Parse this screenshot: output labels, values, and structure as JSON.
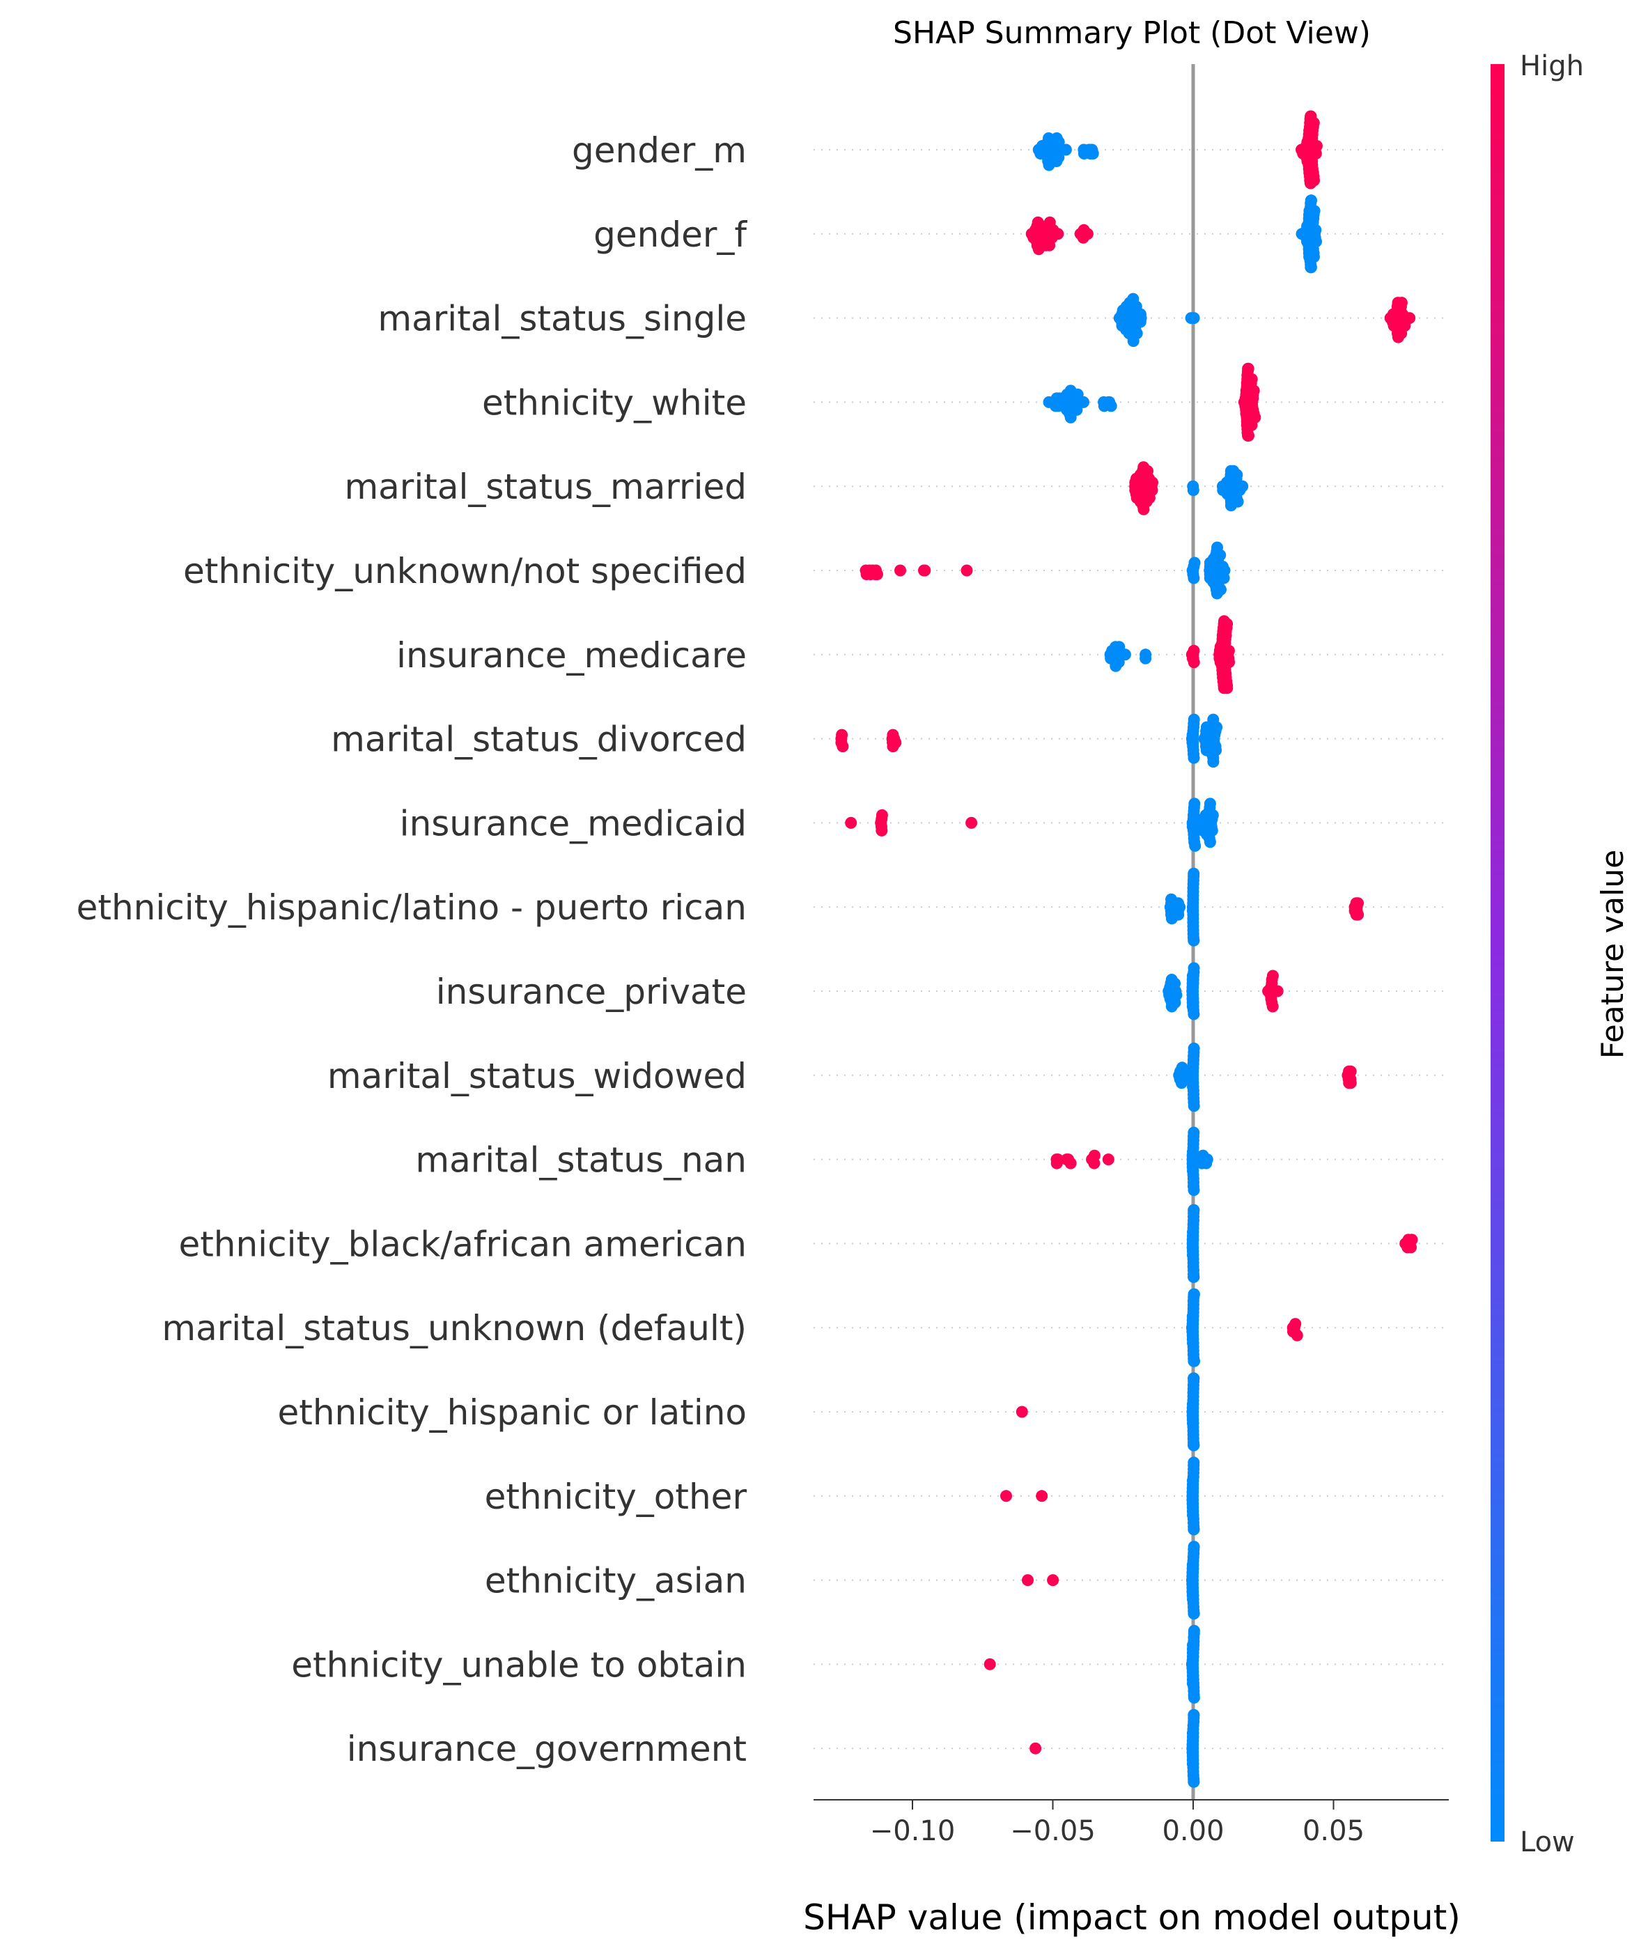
{
  "chart_data": {
    "type": "scatter",
    "variant": "shap-beeswarm",
    "title": "SHAP Summary Plot (Dot View)",
    "xlabel": "SHAP value (impact on model output)",
    "xlim": [
      -0.136,
      0.09
    ],
    "xticks": [
      -0.1,
      -0.05,
      0.0,
      0.05
    ],
    "xtick_labels": [
      "−0.10",
      "−0.05",
      "0.00",
      "0.05"
    ],
    "colorbar": {
      "title": "Feature value",
      "high_label": "High",
      "low_label": "Low",
      "high_color": "#ff0052",
      "low_color": "#008bfb"
    },
    "features": [
      {
        "name": "gender_m",
        "clusters": [
          {
            "center": -0.051,
            "spread": 0.0045,
            "count": 34,
            "value": "low"
          },
          {
            "center": -0.037,
            "spread": 0.003,
            "count": 6,
            "value": "low"
          },
          {
            "center": 0.0415,
            "spread": 0.002,
            "count": 48,
            "value": "high"
          }
        ]
      },
      {
        "name": "gender_f",
        "clusters": [
          {
            "center": -0.053,
            "spread": 0.004,
            "count": 34,
            "value": "high"
          },
          {
            "center": -0.038,
            "spread": 0.002,
            "count": 5,
            "value": "high"
          },
          {
            "center": 0.0415,
            "spread": 0.002,
            "count": 44,
            "value": "low"
          }
        ]
      },
      {
        "name": "marital_status_single",
        "clusters": [
          {
            "center": -0.022,
            "spread": 0.0035,
            "count": 46,
            "value": "low"
          },
          {
            "center": 0.0,
            "spread": 0.0005,
            "count": 2,
            "value": "low"
          },
          {
            "center": 0.073,
            "spread": 0.003,
            "count": 30,
            "value": "high"
          }
        ]
      },
      {
        "name": "ethnicity_white",
        "clusters": [
          {
            "center": -0.045,
            "spread": 0.005,
            "count": 28,
            "value": "low"
          },
          {
            "center": -0.031,
            "spread": 0.002,
            "count": 5,
            "value": "low"
          },
          {
            "center": 0.02,
            "spread": 0.0015,
            "count": 46,
            "value": "high"
          }
        ]
      },
      {
        "name": "marital_status_married",
        "clusters": [
          {
            "center": -0.018,
            "spread": 0.003,
            "count": 44,
            "value": "high"
          },
          {
            "center": 0.0,
            "spread": 0.0005,
            "count": 2,
            "value": "low"
          },
          {
            "center": 0.014,
            "spread": 0.0025,
            "count": 36,
            "value": "low"
          }
        ]
      },
      {
        "name": "ethnicity_unknown/not specified",
        "clusters": [
          {
            "center": -0.114,
            "spread": 0.003,
            "count": 8,
            "value": "high"
          },
          {
            "center": -0.104,
            "spread": 0.0005,
            "count": 1,
            "value": "high"
          },
          {
            "center": -0.096,
            "spread": 0.001,
            "count": 2,
            "value": "high"
          },
          {
            "center": -0.081,
            "spread": 0.0005,
            "count": 1,
            "value": "high"
          },
          {
            "center": 0.0,
            "spread": 0.0005,
            "count": 6,
            "value": "low"
          },
          {
            "center": 0.008,
            "spread": 0.0025,
            "count": 40,
            "value": "low"
          }
        ]
      },
      {
        "name": "insurance_medicare",
        "clusters": [
          {
            "center": -0.027,
            "spread": 0.003,
            "count": 16,
            "value": "low"
          },
          {
            "center": -0.017,
            "spread": 0.001,
            "count": 2,
            "value": "low"
          },
          {
            "center": 0.0,
            "spread": 0.0005,
            "count": 6,
            "value": "high"
          },
          {
            "center": 0.011,
            "spread": 0.0015,
            "count": 46,
            "value": "high"
          }
        ]
      },
      {
        "name": "marital_status_divorced",
        "clusters": [
          {
            "center": -0.125,
            "spread": 0.0008,
            "count": 4,
            "value": "high"
          },
          {
            "center": -0.107,
            "spread": 0.0008,
            "count": 6,
            "value": "high"
          },
          {
            "center": 0.0,
            "spread": 0.0005,
            "count": 14,
            "value": "low"
          },
          {
            "center": 0.006,
            "spread": 0.002,
            "count": 32,
            "value": "low"
          }
        ]
      },
      {
        "name": "insurance_medicaid",
        "clusters": [
          {
            "center": -0.122,
            "spread": 0.0003,
            "count": 1,
            "value": "high"
          },
          {
            "center": -0.111,
            "spread": 0.0008,
            "count": 5,
            "value": "high"
          },
          {
            "center": -0.079,
            "spread": 0.0003,
            "count": 1,
            "value": "high"
          },
          {
            "center": 0.0,
            "spread": 0.0005,
            "count": 14,
            "value": "low"
          },
          {
            "center": 0.005,
            "spread": 0.002,
            "count": 26,
            "value": "low"
          }
        ]
      },
      {
        "name": "ethnicity_hispanic/latino - puerto rican",
        "clusters": [
          {
            "center": -0.007,
            "spread": 0.002,
            "count": 14,
            "value": "low"
          },
          {
            "center": 0.0,
            "spread": 0.0003,
            "count": 22,
            "value": "low"
          },
          {
            "center": 0.058,
            "spread": 0.0008,
            "count": 8,
            "value": "high"
          }
        ]
      },
      {
        "name": "insurance_private",
        "clusters": [
          {
            "center": -0.008,
            "spread": 0.002,
            "count": 16,
            "value": "low"
          },
          {
            "center": 0.0,
            "spread": 0.0003,
            "count": 22,
            "value": "low"
          },
          {
            "center": 0.028,
            "spread": 0.0015,
            "count": 12,
            "value": "high"
          }
        ]
      },
      {
        "name": "marital_status_widowed",
        "clusters": [
          {
            "center": -0.004,
            "spread": 0.0015,
            "count": 8,
            "value": "low"
          },
          {
            "center": 0.0,
            "spread": 0.0003,
            "count": 22,
            "value": "low"
          },
          {
            "center": 0.056,
            "spread": 0.001,
            "count": 8,
            "value": "high"
          }
        ]
      },
      {
        "name": "marital_status_nan",
        "clusters": [
          {
            "center": -0.049,
            "spread": 0.001,
            "count": 3,
            "value": "high"
          },
          {
            "center": -0.044,
            "spread": 0.0008,
            "count": 3,
            "value": "high"
          },
          {
            "center": -0.036,
            "spread": 0.0008,
            "count": 3,
            "value": "high"
          },
          {
            "center": -0.03,
            "spread": 0.0003,
            "count": 1,
            "value": "high"
          },
          {
            "center": 0.0,
            "spread": 0.0003,
            "count": 22,
            "value": "low"
          },
          {
            "center": 0.004,
            "spread": 0.0012,
            "count": 6,
            "value": "low"
          }
        ]
      },
      {
        "name": "ethnicity_black/african american",
        "clusters": [
          {
            "center": 0.0,
            "spread": 0.0003,
            "count": 30,
            "value": "low"
          },
          {
            "center": 0.077,
            "spread": 0.0012,
            "count": 6,
            "value": "high"
          }
        ]
      },
      {
        "name": "marital_status_unknown (default)",
        "clusters": [
          {
            "center": 0.0,
            "spread": 0.0003,
            "count": 30,
            "value": "low"
          },
          {
            "center": 0.036,
            "spread": 0.001,
            "count": 6,
            "value": "high"
          }
        ]
      },
      {
        "name": "ethnicity_hispanic or latino",
        "clusters": [
          {
            "center": -0.061,
            "spread": 0.0003,
            "count": 1,
            "value": "high"
          },
          {
            "center": 0.0,
            "spread": 0.0003,
            "count": 30,
            "value": "low"
          }
        ]
      },
      {
        "name": "ethnicity_other",
        "clusters": [
          {
            "center": -0.067,
            "spread": 0.0003,
            "count": 1,
            "value": "high"
          },
          {
            "center": -0.054,
            "spread": 0.0003,
            "count": 1,
            "value": "high"
          },
          {
            "center": 0.0,
            "spread": 0.0003,
            "count": 30,
            "value": "low"
          }
        ]
      },
      {
        "name": "ethnicity_asian",
        "clusters": [
          {
            "center": -0.059,
            "spread": 0.0003,
            "count": 1,
            "value": "high"
          },
          {
            "center": -0.05,
            "spread": 0.0003,
            "count": 1,
            "value": "high"
          },
          {
            "center": 0.0,
            "spread": 0.0003,
            "count": 30,
            "value": "low"
          }
        ]
      },
      {
        "name": "ethnicity_unable to obtain",
        "clusters": [
          {
            "center": -0.072,
            "spread": 0.0003,
            "count": 1,
            "value": "high"
          },
          {
            "center": 0.0,
            "spread": 0.0003,
            "count": 30,
            "value": "low"
          }
        ]
      },
      {
        "name": "insurance_government",
        "clusters": [
          {
            "center": -0.056,
            "spread": 0.0003,
            "count": 1,
            "value": "high"
          },
          {
            "center": 0.0,
            "spread": 0.0003,
            "count": 30,
            "value": "low"
          }
        ]
      }
    ]
  }
}
